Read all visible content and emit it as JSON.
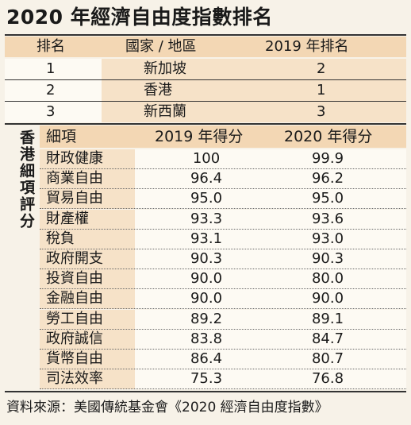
{
  "title": "2020 年經濟自由度指數排名",
  "ranking": {
    "headers": [
      "排名",
      "國家 / 地區",
      "2019 年排名"
    ],
    "rows": [
      {
        "rank": "1",
        "place": "新加坡",
        "prev": "2"
      },
      {
        "rank": "2",
        "place": "香港",
        "prev": "1"
      },
      {
        "rank": "3",
        "place": "新西蘭",
        "prev": "3"
      }
    ]
  },
  "detail": {
    "side_label": "香港細項評分",
    "headers": [
      "細項",
      "2019 年得分",
      "2020 年得分"
    ],
    "rows": [
      {
        "item": "財政健康",
        "y2019": "100",
        "y2020": "99.9"
      },
      {
        "item": "商業自由",
        "y2019": "96.4",
        "y2020": "96.2"
      },
      {
        "item": "貿易自由",
        "y2019": "95.0",
        "y2020": "95.0"
      },
      {
        "item": "財產權",
        "y2019": "93.3",
        "y2020": "93.6"
      },
      {
        "item": "稅負",
        "y2019": "93.1",
        "y2020": "93.0"
      },
      {
        "item": "政府開支",
        "y2019": "90.3",
        "y2020": "90.3"
      },
      {
        "item": "投資自由",
        "y2019": "90.0",
        "y2020": "80.0"
      },
      {
        "item": "金融自由",
        "y2019": "90.0",
        "y2020": "90.0"
      },
      {
        "item": "勞工自由",
        "y2019": "89.2",
        "y2020": "89.1"
      },
      {
        "item": "政府誠信",
        "y2019": "83.8",
        "y2020": "84.7"
      },
      {
        "item": "貨幣自由",
        "y2019": "86.4",
        "y2020": "80.7"
      },
      {
        "item": "司法效率",
        "y2019": "75.3",
        "y2020": "76.8"
      }
    ]
  },
  "source": "資料來源：美國傳統基金會《2020 經濟自由度指數》"
}
